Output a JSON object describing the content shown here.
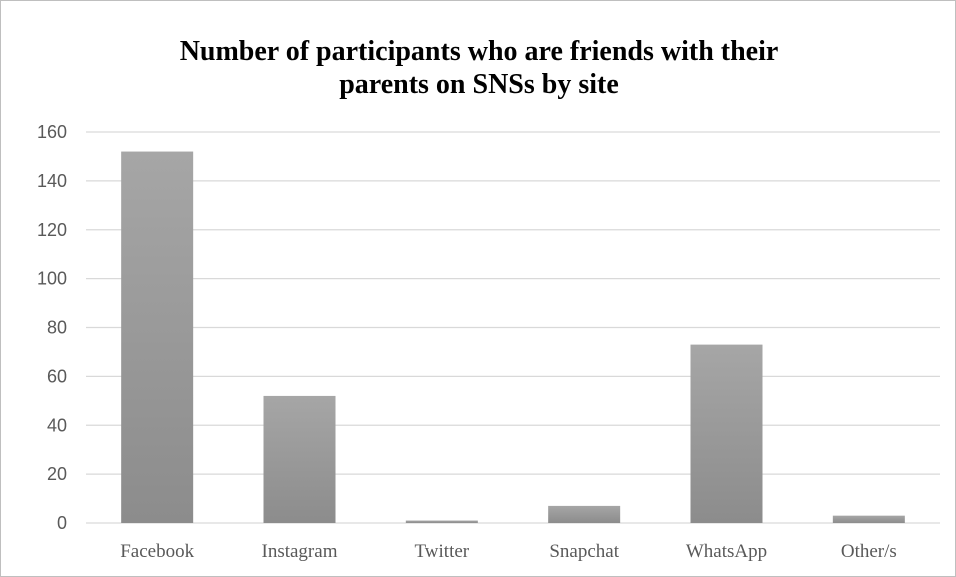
{
  "chart_data": {
    "type": "bar",
    "title_line1": "Number of participants who are friends with their",
    "title_line2": "parents on SNSs by site",
    "xlabel": "",
    "ylabel": "",
    "categories": [
      "Facebook",
      "Instagram",
      "Twitter",
      "Snapchat",
      "WhatsApp",
      "Other/s"
    ],
    "values": [
      152,
      52,
      1,
      7,
      73,
      3
    ],
    "ylim": [
      0,
      160
    ],
    "yticks": [
      0,
      20,
      40,
      60,
      80,
      100,
      120,
      140,
      160
    ],
    "grid": true,
    "legend": "none",
    "colors": {
      "bar_light": "#a6a6a6",
      "bar_dark": "#8c8c8c",
      "grid": "#d9d9d9",
      "axis": "#d9d9d9"
    }
  }
}
